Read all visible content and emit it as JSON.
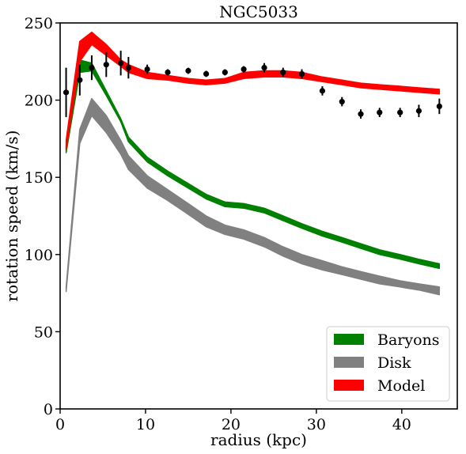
{
  "chart_data": {
    "type": "line",
    "title": "NGC5033",
    "xlabel": "radius (kpc)",
    "ylabel": "rotation speed (km/s)",
    "xlim": [
      0,
      46.5
    ],
    "ylim": [
      0,
      250
    ],
    "xticks": [
      0,
      10,
      20,
      30,
      40
    ],
    "yticks": [
      0,
      50,
      100,
      150,
      200,
      250
    ],
    "grid": false,
    "legend_position": "bottom-right",
    "colors": {
      "baryons": "#008000",
      "disk": "#808080",
      "model": "#ff0000",
      "data": "#000000"
    },
    "series": [
      {
        "name": "Baryons",
        "kind": "band",
        "x": [
          0.7,
          2.3,
          3.7,
          5.4,
          7.1,
          8.0,
          10.2,
          12.6,
          15.0,
          17.1,
          19.3,
          21.5,
          23.9,
          26.1,
          28.3,
          30.7,
          33.0,
          35.2,
          37.4,
          39.8,
          42.0,
          44.4
        ],
        "low": [
          166,
          218,
          219,
          203,
          186,
          173,
          160,
          151,
          143,
          136,
          131,
          130,
          127,
          122,
          117,
          112,
          108,
          104,
          100,
          97,
          94,
          91
        ],
        "high": [
          170,
          226,
          224,
          206,
          188,
          176,
          163,
          154,
          146,
          139,
          134,
          133,
          130,
          125,
          120,
          115,
          111,
          107,
          103,
          100,
          97,
          94
        ]
      },
      {
        "name": "Disk",
        "kind": "band",
        "x": [
          0.7,
          2.3,
          3.7,
          5.4,
          7.1,
          8.0,
          10.2,
          12.6,
          15.0,
          17.1,
          19.3,
          21.5,
          23.9,
          26.1,
          28.3,
          30.7,
          33.0,
          35.2,
          37.4,
          39.8,
          42.0,
          44.4
        ],
        "low": [
          76,
          172,
          190,
          179,
          165,
          155,
          143,
          135,
          126,
          118,
          113,
          110,
          105,
          99,
          94,
          90,
          87,
          84,
          81,
          79,
          77,
          74
        ],
        "high": [
          79,
          181,
          201,
          190,
          174,
          164,
          151,
          142,
          133,
          125,
          119,
          116,
          111,
          105,
          100,
          96,
          92,
          89,
          86,
          83,
          81,
          79
        ]
      },
      {
        "name": "Model",
        "kind": "band",
        "x": [
          0.7,
          2.3,
          3.7,
          5.4,
          7.1,
          8.0,
          10.2,
          12.6,
          15.0,
          17.1,
          19.3,
          21.5,
          23.9,
          26.1,
          28.3,
          30.7,
          33.0,
          35.2,
          37.4,
          39.8,
          42.0,
          44.4
        ],
        "low": [
          168,
          225,
          236,
          229,
          222,
          218,
          214,
          213,
          211,
          210,
          211,
          214,
          215,
          215,
          214,
          212,
          210,
          208,
          207,
          206,
          205,
          204
        ],
        "high": [
          174,
          238,
          244,
          236,
          226,
          223,
          218,
          216,
          214,
          213,
          214,
          218,
          219,
          219,
          218,
          215,
          213,
          211,
          210,
          209,
          208,
          207
        ]
      },
      {
        "kind": "points",
        "x": [
          0.7,
          2.3,
          3.7,
          5.4,
          7.1,
          8.0,
          10.2,
          12.6,
          15.0,
          17.1,
          19.3,
          21.5,
          23.9,
          26.1,
          28.3,
          30.7,
          33.0,
          35.2,
          37.4,
          39.8,
          42.0,
          44.4
        ],
        "y": [
          205,
          213,
          221,
          223,
          224,
          221,
          220,
          218,
          219,
          217,
          218,
          220,
          221,
          218,
          217,
          206,
          199,
          191,
          192,
          192,
          193,
          196
        ],
        "err": [
          16,
          10,
          8,
          8,
          8,
          7,
          3,
          2,
          2,
          2,
          2,
          2,
          3,
          3,
          3,
          3,
          3,
          3,
          3,
          3,
          4,
          5
        ]
      }
    ],
    "legend": [
      {
        "label": "Baryons",
        "color": "#008000"
      },
      {
        "label": "Disk",
        "color": "#808080"
      },
      {
        "label": "Model",
        "color": "#ff0000"
      }
    ]
  }
}
